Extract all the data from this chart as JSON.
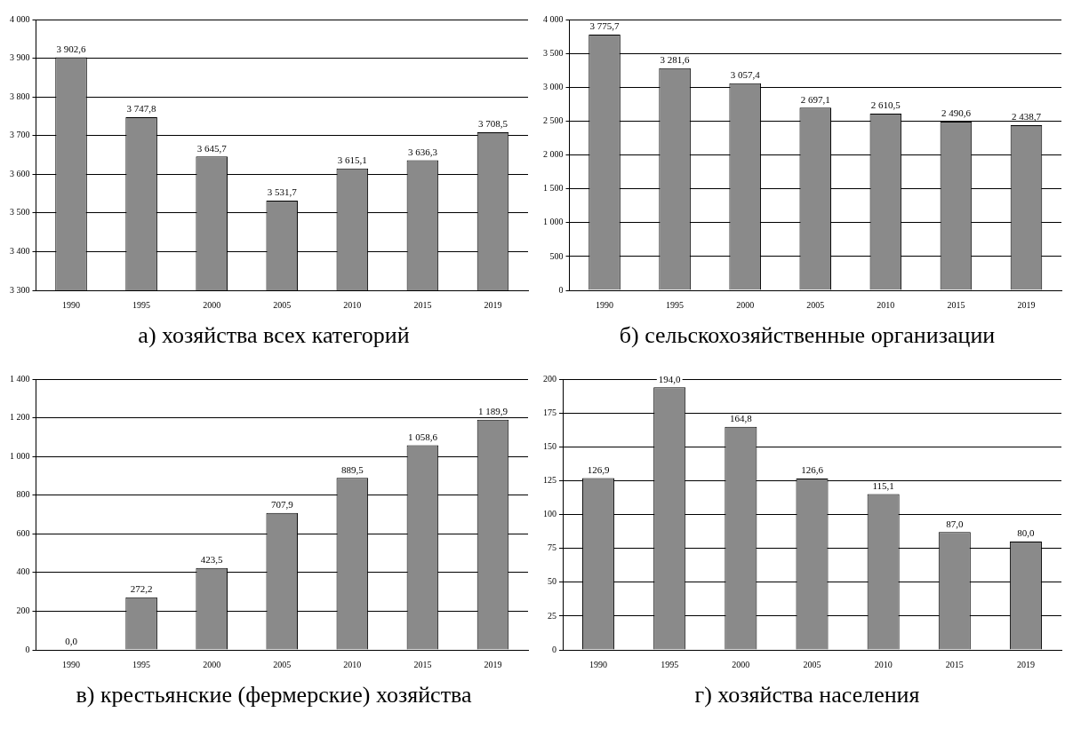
{
  "chart_data": [
    {
      "type": "bar",
      "title": "а) хозяйства всех категорий",
      "categories": [
        "1990",
        "1995",
        "2000",
        "2005",
        "2010",
        "2015",
        "2019"
      ],
      "values": [
        3902.6,
        3747.8,
        3645.7,
        3531.7,
        3615.1,
        3636.3,
        3708.5
      ],
      "value_labels": [
        "3 902,6",
        "3 747,8",
        "3 645,7",
        "3 531,7",
        "3 615,1",
        "3 636,3",
        "3 708,5"
      ],
      "color": "#8a8a8a",
      "ylim": [
        3300,
        4000
      ],
      "yticks": [
        {
          "value": 3300,
          "label": "3 300"
        },
        {
          "value": 3400,
          "label": "3 400"
        },
        {
          "value": 3500,
          "label": "3 500"
        },
        {
          "value": 3600,
          "label": "3 600"
        },
        {
          "value": 3700,
          "label": "3 700"
        },
        {
          "value": 3800,
          "label": "3 800"
        },
        {
          "value": 3900,
          "label": "3 900"
        },
        {
          "value": 4000,
          "label": "4 000"
        }
      ],
      "grid": "y"
    },
    {
      "type": "bar",
      "title": "б) сельскохозяйственные организации",
      "categories": [
        "1990",
        "1995",
        "2000",
        "2005",
        "2010",
        "2015",
        "2019"
      ],
      "values": [
        3775.7,
        3281.6,
        3057.4,
        2697.1,
        2610.5,
        2490.6,
        2438.7
      ],
      "value_labels": [
        "3 775,7",
        "3 281,6",
        "3 057,4",
        "2 697,1",
        "2 610,5",
        "2 490,6",
        "2 438,7"
      ],
      "color": "#8a8a8a",
      "ylim": [
        0,
        4000
      ],
      "yticks": [
        0,
        500,
        {
          "value": 1000,
          "label": "1 000"
        },
        {
          "value": 1500,
          "label": "1 500"
        },
        {
          "value": 2000,
          "label": "2 000"
        },
        {
          "value": 2500,
          "label": "2 500"
        },
        {
          "value": 3000,
          "label": "3 000"
        },
        {
          "value": 3500,
          "label": "3 500"
        },
        {
          "value": 4000,
          "label": "4 000"
        }
      ],
      "grid": "y"
    },
    {
      "type": "bar",
      "title": "в) крестьянские (фермерские) хозяйства",
      "categories": [
        "1990",
        "1995",
        "2000",
        "2005",
        "2010",
        "2015",
        "2019"
      ],
      "values": [
        0,
        272.2,
        423.5,
        707.9,
        889.5,
        1058.6,
        1189.9
      ],
      "value_labels": [
        "0,0",
        "272,2",
        "423,5",
        "707,9",
        "889,5",
        "1 058,6",
        "1 189,9"
      ],
      "color": "#8a8a8a",
      "ylim": [
        0,
        1400
      ],
      "yticks": [
        0,
        200,
        400,
        600,
        800,
        {
          "value": 1000,
          "label": "1 000"
        },
        {
          "value": 1200,
          "label": "1 200"
        },
        {
          "value": 1400,
          "label": "1 400"
        }
      ],
      "grid": "y"
    },
    {
      "type": "bar",
      "title": "г) хозяйства населения",
      "categories": [
        "1990",
        "1995",
        "2000",
        "2005",
        "2010",
        "2015",
        "2019"
      ],
      "values": [
        126.9,
        194.0,
        164.8,
        126.6,
        115.1,
        87.0,
        80.0
      ],
      "value_labels": [
        "126,9",
        "194,0",
        "164,8",
        "126,6",
        "115,1",
        "87,0",
        "80,0"
      ],
      "color": "#8a8a8a",
      "ylim": [
        0,
        200
      ],
      "yticks": [
        0,
        25,
        50,
        75,
        100,
        125,
        150,
        175,
        200
      ],
      "grid": "y"
    }
  ]
}
